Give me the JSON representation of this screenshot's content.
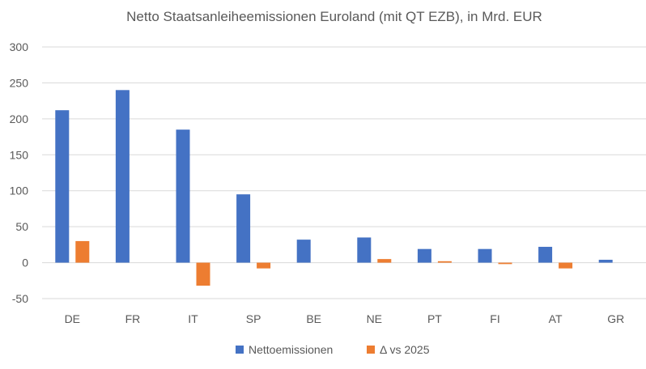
{
  "chart_data": {
    "type": "bar",
    "title": "Netto Staatsanleiheemissionen Euroland (mit QT EZB), in Mrd. EUR",
    "xlabel": "",
    "ylabel": "",
    "ylim": [
      -50,
      300
    ],
    "yticks": [
      -50,
      0,
      50,
      100,
      150,
      200,
      250,
      300
    ],
    "grid": true,
    "legend_position": "bottom",
    "categories": [
      "DE",
      "FR",
      "IT",
      "SP",
      "BE",
      "NE",
      "PT",
      "FI",
      "AT",
      "GR"
    ],
    "series": [
      {
        "name": "Nettoemissionen",
        "color": "#4472C4",
        "values": [
          212,
          240,
          185,
          95,
          32,
          35,
          19,
          19,
          22,
          4
        ]
      },
      {
        "name": "Δ vs 2025",
        "color": "#ED7D31",
        "values": [
          30,
          0,
          -32,
          -8,
          0,
          5,
          2,
          -2,
          -8,
          0
        ]
      }
    ]
  }
}
